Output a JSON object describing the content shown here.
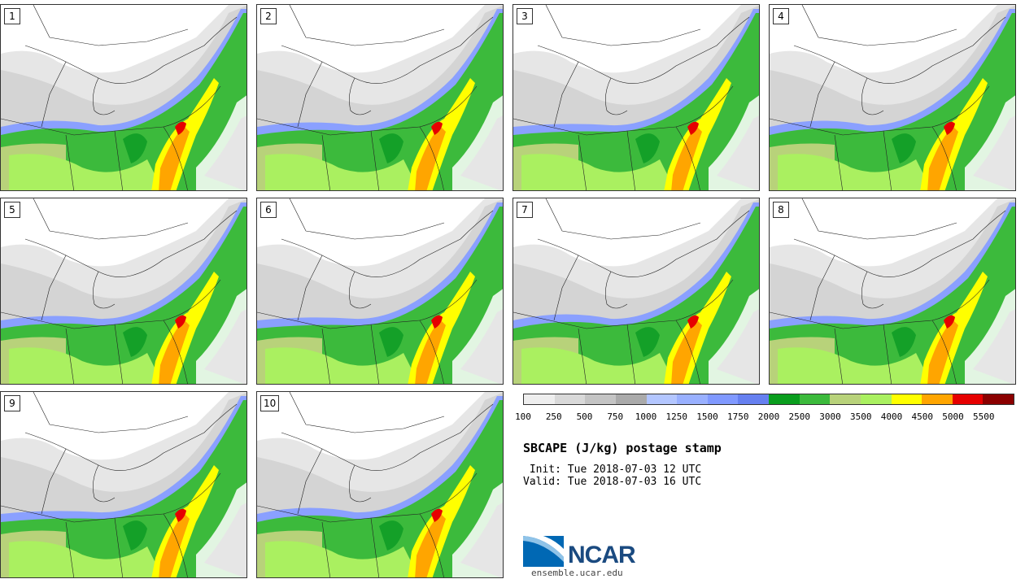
{
  "title": "SBCAPE (J/kg) postage stamp",
  "init_text": " Init: Tue 2018-07-03 12 UTC",
  "valid_text": "Valid: Tue 2018-07-03 16 UTC",
  "logo_text": "NCAR",
  "site": "ensemble.ucar.edu",
  "members": [
    "1",
    "2",
    "3",
    "4",
    "5",
    "6",
    "7",
    "8",
    "9",
    "10"
  ],
  "colorbar": {
    "colors": [
      "#eeeeee",
      "#d9d9d9",
      "#c4c4c4",
      "#aaaaaa",
      "#b3c6ff",
      "#99b0ff",
      "#8099ff",
      "#6680f0",
      "#0a9e1e",
      "#3cba3c",
      "#b8d27a",
      "#aaf060",
      "#ffff00",
      "#ffa500",
      "#e60000",
      "#8b0000"
    ],
    "tick_labels": [
      "100",
      "250",
      "500",
      "750",
      "1000",
      "1250",
      "1500",
      "1750",
      "2000",
      "2500",
      "3000",
      "3500",
      "4000",
      "4500",
      "5000",
      "5500"
    ]
  },
  "map_colors": {
    "gray_light": "#e6e6e6",
    "gray_mid": "#cccccc",
    "blue": "#8aa0ff",
    "green_dark": "#14a028",
    "green": "#3cba3c",
    "green_light": "#aaf060",
    "olive": "#b8d27a",
    "yellow": "#ffff00",
    "orange": "#ffa500",
    "red": "#e60000"
  }
}
